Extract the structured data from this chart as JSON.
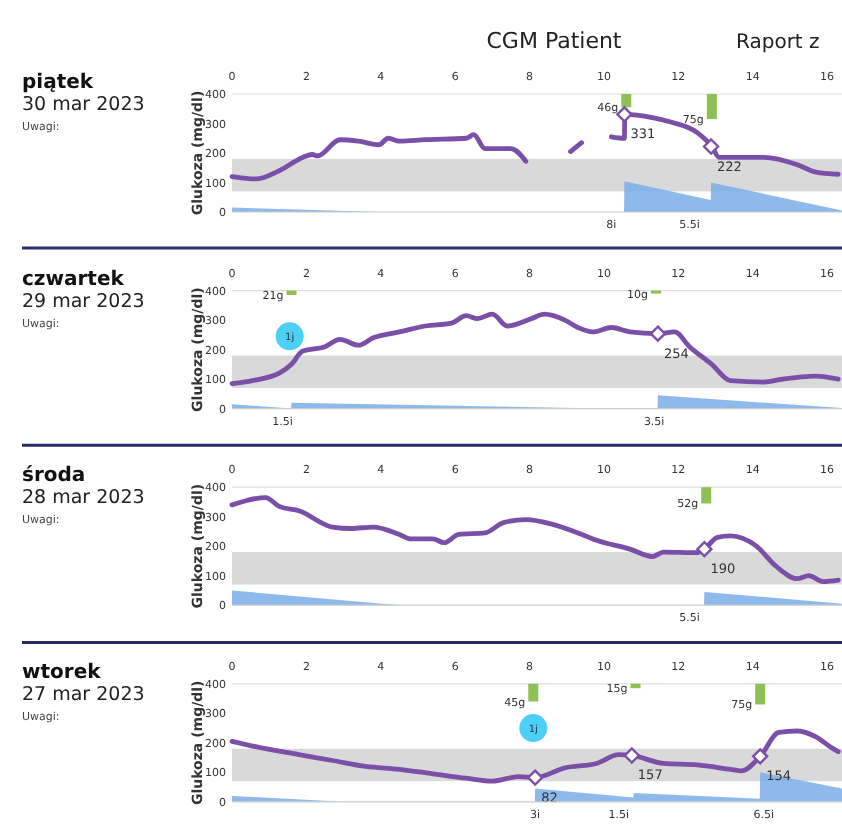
{
  "chart_data": [
    {
      "type": "other",
      "title": "CGM Patient",
      "annotations": [
        "Raport z"
      ]
    },
    {
      "type": "line",
      "title": "piątek",
      "subtitle": "30 mar 2023",
      "ylabel": "Glukoza (mg/dl)",
      "xlim": [
        0,
        16.4
      ],
      "ylim": [
        0,
        400
      ],
      "xticks": [
        0,
        2,
        4,
        6,
        8,
        10,
        12,
        14,
        16
      ],
      "yticks": [
        0,
        100,
        200,
        300,
        400
      ],
      "grid": false,
      "bands": [
        {
          "axis": "y",
          "from": 70,
          "to": 180,
          "color": "#d9d9d9"
        }
      ],
      "series": [
        {
          "type": "area",
          "color": "#7aaee8",
          "x": [
            0,
            4,
            10.54,
            10.55,
            12.87,
            12.88,
            16.4
          ],
          "values": [
            15,
            0,
            0,
            104,
            41,
            100,
            5
          ]
        },
        {
          "type": "line",
          "color": "#7b4fa8",
          "x": [
            0,
            0.64,
            1.27,
            1.9,
            2.16,
            2.3,
            2.9,
            3.4,
            3.95,
            4.2,
            4.5,
            5.2,
            6.3,
            6.5,
            6.8,
            7.5,
            7.9,
            8.5,
            9.1,
            9.4,
            9.8,
            10.2,
            10.55,
            10.56,
            11.3,
            11.8,
            12.5,
            12.9,
            13.1,
            14.3,
            15.2,
            15.7,
            16.3
          ],
          "values": [
            120,
            112,
            140,
            185,
            195,
            190,
            245,
            240,
            228,
            250,
            240,
            245,
            250,
            262,
            215,
            215,
            172,
            null,
            205,
            235,
            null,
            255,
            250,
            331,
            320,
            305,
            270,
            222,
            185,
            185,
            160,
            135,
            128
          ]
        },
        {
          "type": "bar",
          "color": "#8dc153",
          "x": [
            10.6,
            12.9
          ],
          "base": [
            400,
            400
          ],
          "values": [
            -45,
            -85
          ]
        },
        {
          "type": "scatter",
          "marker": "diamond",
          "color": "#7b4fa8",
          "x": [
            10.55,
            12.88
          ],
          "values": [
            331,
            222
          ],
          "value_labels": [
            "331",
            "222"
          ]
        }
      ],
      "annotations": [
        "Uwagi:",
        {
          "text": "46g",
          "x": 10.6,
          "y": 355
        },
        {
          "text": "75g",
          "x": 12.9,
          "y": 315
        },
        {
          "text": "8i",
          "x": 10.2,
          "y": 0
        },
        {
          "text": "5.5i",
          "x": 12.3,
          "y": 0
        }
      ]
    },
    {
      "type": "line",
      "title": "czwartek",
      "subtitle": "29 mar 2023",
      "ylabel": "Glukoza (mg/dl)",
      "xlim": [
        0,
        16.4
      ],
      "ylim": [
        0,
        400
      ],
      "xticks": [
        0,
        2,
        4,
        6,
        8,
        10,
        12,
        14,
        16
      ],
      "yticks": [
        0,
        100,
        200,
        300,
        400
      ],
      "grid": false,
      "bands": [
        {
          "axis": "y",
          "from": 70,
          "to": 180,
          "color": "#d9d9d9"
        }
      ],
      "series": [
        {
          "type": "area",
          "color": "#7aaee8",
          "x": [
            0,
            1.59,
            1.6,
            10,
            11.44,
            11.45,
            16.4
          ],
          "values": [
            15,
            0,
            20,
            0,
            0,
            45,
            2
          ]
        },
        {
          "type": "line",
          "color": "#7b4fa8",
          "x": [
            0,
            0.55,
            1.27,
            1.6,
            1.9,
            2.5,
            2.9,
            3.4,
            3.8,
            4.5,
            5.2,
            5.9,
            6.3,
            6.6,
            7.0,
            7.4,
            8.05,
            8.4,
            8.95,
            9.3,
            9.7,
            10.2,
            10.7,
            11.45,
            11.9,
            12.3,
            12.9,
            13.4,
            14.3,
            14.8,
            15.7,
            16.3
          ],
          "values": [
            85,
            95,
            120,
            150,
            195,
            210,
            235,
            215,
            240,
            260,
            280,
            290,
            315,
            305,
            320,
            280,
            305,
            320,
            300,
            275,
            260,
            275,
            260,
            254,
            260,
            210,
            150,
            95,
            90,
            100,
            110,
            100
          ]
        },
        {
          "type": "bar",
          "color": "#8dc153",
          "x": [
            1.6,
            11.4
          ],
          "base": [
            400,
            400
          ],
          "values": [
            -15,
            -10
          ]
        },
        {
          "type": "scatter",
          "marker": "diamond",
          "color": "#7b4fa8",
          "x": [
            11.45
          ],
          "values": [
            254
          ],
          "value_labels": [
            "254"
          ]
        },
        {
          "type": "scatter",
          "marker": "circle",
          "color": "#4dd0f5",
          "x": [
            1.55
          ],
          "values": [
            245
          ]
        }
      ],
      "annotations": [
        "Uwagi:",
        {
          "text": "1j",
          "x": 1.55,
          "y": 245
        },
        {
          "text": "21g",
          "x": 1.6,
          "y": 385
        },
        {
          "text": "10g",
          "x": 11.4,
          "y": 390
        },
        {
          "text": "1.5i",
          "x": 1.36,
          "y": 0
        },
        {
          "text": "3.5i",
          "x": 11.35,
          "y": 0
        }
      ]
    },
    {
      "type": "line",
      "title": "środa",
      "subtitle": "28 mar 2023",
      "ylabel": "Glukoza (mg/dl)",
      "xlim": [
        0,
        16.4
      ],
      "ylim": [
        0,
        400
      ],
      "xticks": [
        0,
        2,
        4,
        6,
        8,
        10,
        12,
        14,
        16
      ],
      "yticks": [
        0,
        100,
        200,
        300,
        400
      ],
      "grid": false,
      "bands": [
        {
          "axis": "y",
          "from": 70,
          "to": 180,
          "color": "#d9d9d9"
        }
      ],
      "series": [
        {
          "type": "area",
          "color": "#7aaee8",
          "x": [
            0,
            4.5,
            12.69,
            12.7,
            16.4
          ],
          "values": [
            50,
            0,
            0,
            45,
            5
          ]
        },
        {
          "type": "line",
          "color": "#7b4fa8",
          "x": [
            0,
            0.4,
            0.9,
            1.27,
            1.8,
            2.7,
            3.2,
            3.8,
            4.5,
            4.8,
            5.4,
            5.7,
            6.1,
            6.8,
            7.3,
            7.9,
            8.6,
            9.3,
            9.8,
            10.7,
            11.3,
            11.6,
            12.5,
            12.7,
            13.05,
            13.4,
            14.1,
            14.6,
            15.2,
            15.5,
            15.9,
            16.3
          ],
          "values": [
            340,
            355,
            365,
            335,
            320,
            265,
            260,
            265,
            240,
            225,
            225,
            212,
            240,
            245,
            280,
            290,
            275,
            245,
            220,
            190,
            165,
            180,
            178,
            190,
            230,
            235,
            200,
            135,
            90,
            100,
            80,
            85
          ]
        },
        {
          "type": "bar",
          "color": "#8dc153",
          "x": [
            12.75
          ],
          "base": [
            400
          ],
          "values": [
            -55
          ]
        },
        {
          "type": "scatter",
          "marker": "diamond",
          "color": "#7b4fa8",
          "x": [
            12.7
          ],
          "values": [
            190
          ],
          "value_labels": [
            "190"
          ]
        }
      ],
      "annotations": [
        "Uwagi:",
        {
          "text": "52g",
          "x": 12.75,
          "y": 345
        },
        {
          "text": "5.5i",
          "x": 12.3,
          "y": 0
        }
      ]
    },
    {
      "type": "line",
      "title": "wtorek",
      "subtitle": "27 mar 2023",
      "ylabel": "Glukoza (mg/dl)",
      "xlim": [
        0,
        16.4
      ],
      "ylim": [
        0,
        400
      ],
      "xticks": [
        0,
        2,
        4,
        6,
        8,
        10,
        12,
        14,
        16
      ],
      "yticks": [
        0,
        100,
        200,
        300,
        400
      ],
      "grid": false,
      "bands": [
        {
          "axis": "y",
          "from": 70,
          "to": 180,
          "color": "#d9d9d9"
        }
      ],
      "series": [
        {
          "type": "area",
          "color": "#7aaee8",
          "x": [
            0,
            3,
            8.14,
            8.15,
            10.79,
            10.8,
            14.19,
            14.2,
            16.4
          ],
          "values": [
            20,
            0,
            0,
            45,
            15,
            30,
            10,
            100,
            45
          ]
        },
        {
          "type": "line",
          "color": "#7b4fa8",
          "x": [
            0,
            0.9,
            1.8,
            2.7,
            3.6,
            4.5,
            5.4,
            6.3,
            7.0,
            7.7,
            8.15,
            8.95,
            9.8,
            10.4,
            10.75,
            11.6,
            12.5,
            13.4,
            13.7,
            14.2,
            14.7,
            15.2,
            15.7,
            16.1,
            16.3
          ],
          "values": [
            205,
            180,
            160,
            140,
            120,
            110,
            95,
            80,
            70,
            85,
            82,
            115,
            130,
            160,
            157,
            130,
            125,
            110,
            105,
            154,
            235,
            240,
            220,
            185,
            170
          ]
        },
        {
          "type": "bar",
          "color": "#8dc153",
          "x": [
            8.1,
            10.85,
            14.2
          ],
          "base": [
            400,
            400,
            400
          ],
          "values": [
            -60,
            -15,
            -70
          ]
        },
        {
          "type": "scatter",
          "marker": "diamond",
          "color": "#7b4fa8",
          "x": [
            8.15,
            10.75,
            14.2
          ],
          "values": [
            82,
            157,
            154
          ],
          "value_labels": [
            "82",
            "157",
            "154"
          ]
        },
        {
          "type": "scatter",
          "marker": "circle",
          "color": "#4dd0f5",
          "x": [
            8.1
          ],
          "values": [
            250
          ]
        }
      ],
      "annotations": [
        "Uwagi:",
        {
          "text": "1j",
          "x": 8.1,
          "y": 250
        },
        {
          "text": "45g",
          "x": 8.1,
          "y": 340
        },
        {
          "text": "15g",
          "x": 10.85,
          "y": 385
        },
        {
          "text": "75g",
          "x": 14.2,
          "y": 330
        },
        {
          "text": "3i",
          "x": 8.15,
          "y": 0
        },
        {
          "text": "1.5i",
          "x": 10.4,
          "y": 0
        },
        {
          "text": "6.5i",
          "x": 14.3,
          "y": 0
        }
      ]
    }
  ]
}
